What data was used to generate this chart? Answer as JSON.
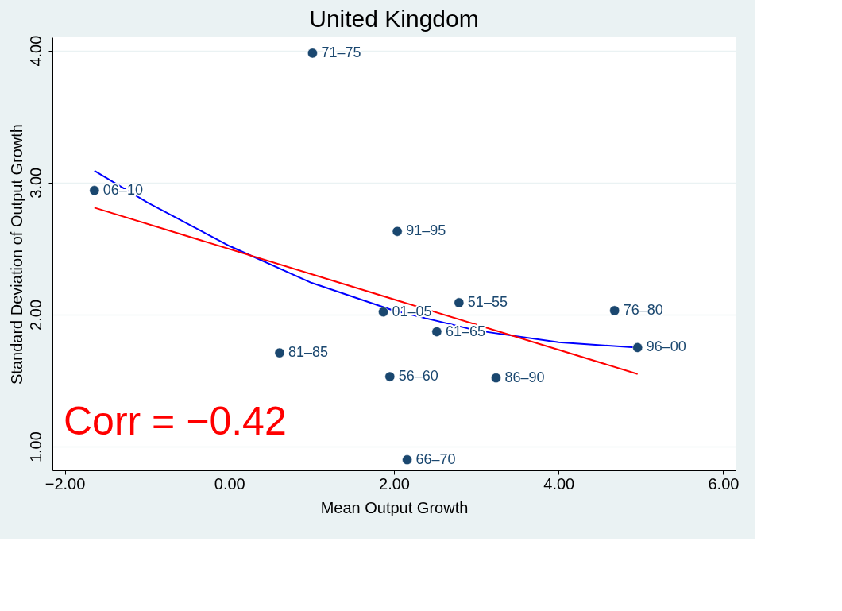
{
  "chart_data": {
    "type": "scatter",
    "title": "United Kingdom",
    "xlabel": "Mean Output Growth",
    "ylabel": "Standard Deviation of Output Growth",
    "x": [
      1.01,
      -1.64,
      2.04,
      2.79,
      1.87,
      4.68,
      2.52,
      4.96,
      0.61,
      1.95,
      3.24,
      2.16
    ],
    "series": [
      {
        "color": "#1a476f",
        "values": [
          3.98,
          2.94,
          2.63,
          2.09,
          2.02,
          2.03,
          1.87,
          1.75,
          1.71,
          1.53,
          1.52,
          0.9
        ],
        "value_labels": [
          "71–75",
          "06–10",
          "91–95",
          "51–55",
          "01–05",
          "76–80",
          "61–65",
          "96–00",
          "81–85",
          "56–60",
          "86–90",
          "66–70"
        ]
      },
      {
        "type": "line",
        "marker": "none",
        "color": "#0000ff",
        "x": [
          -1.64,
          -1.0,
          0.0,
          1.0,
          2.0,
          3.0,
          4.0,
          4.96
        ],
        "values": [
          3.09,
          2.85,
          2.52,
          2.24,
          2.03,
          1.88,
          1.79,
          1.75
        ]
      },
      {
        "type": "line",
        "marker": "none",
        "color": "#ff0000",
        "x": [
          -1.64,
          4.96
        ],
        "values": [
          2.81,
          1.55
        ]
      }
    ],
    "xlim": [
      -2.15,
      6.15
    ],
    "ylim": [
      0.82,
      4.1
    ],
    "xticks": [
      {
        "value": -2,
        "label": "−2.00"
      },
      {
        "value": 0,
        "label": "0.00"
      },
      {
        "value": 2,
        "label": "2.00"
      },
      {
        "value": 4,
        "label": "4.00"
      },
      {
        "value": 6,
        "label": "6.00"
      }
    ],
    "yticks": [
      {
        "value": 1,
        "label": "1.00"
      },
      {
        "value": 2,
        "label": "2.00"
      },
      {
        "value": 3,
        "label": "3.00"
      },
      {
        "value": 4,
        "label": "4.00"
      }
    ],
    "annotations": [
      "Corr = −0.42"
    ],
    "grid": "y",
    "legend": false,
    "marker": "circle",
    "line_style": "solid"
  }
}
